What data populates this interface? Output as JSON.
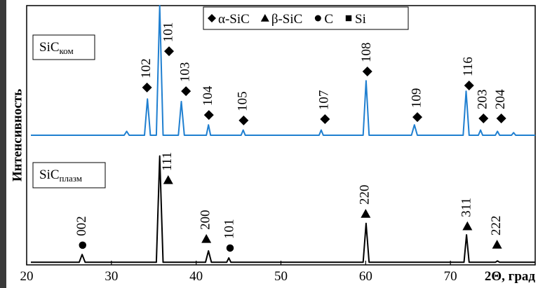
{
  "chart_data": {
    "type": "line",
    "xlabel": "2Θ, град",
    "ylabel": "Интенсивность",
    "xlim": [
      20,
      80
    ],
    "ylim": [
      0,
      100
    ],
    "xticks": [
      20,
      30,
      40,
      50,
      60,
      70
    ],
    "legend": [
      {
        "label": "α-SiC",
        "marker": "diamond"
      },
      {
        "label": "β-SiC",
        "marker": "triangle"
      },
      {
        "label": "C",
        "marker": "circle"
      },
      {
        "label": "Si",
        "marker": "square"
      }
    ],
    "panel_labels": [
      {
        "main": "SiC",
        "sub": "ком"
      },
      {
        "main": "SiC",
        "sub": "плазм"
      }
    ],
    "series": [
      {
        "color": "#1f7fd0",
        "x": [
          20.5,
          31.5,
          31.8,
          32.1,
          33.9,
          34.25,
          34.6,
          35.3,
          35.7,
          36.1,
          37.9,
          38.25,
          38.6,
          41.2,
          41.45,
          41.7,
          45.3,
          45.55,
          45.8,
          54.5,
          54.75,
          55.0,
          59.7,
          60.05,
          60.4,
          65.4,
          65.75,
          66.1,
          71.5,
          71.85,
          72.2,
          73.3,
          73.55,
          73.8,
          75.3,
          75.55,
          75.8,
          77.2,
          77.45,
          77.7,
          80
        ],
        "values": [
          50,
          50,
          51.5,
          50,
          50,
          64,
          50,
          50,
          100,
          50,
          50,
          63,
          50,
          50,
          54,
          50,
          50,
          52,
          50,
          50,
          52,
          50,
          50,
          71,
          50,
          50,
          54,
          50,
          50,
          67,
          50,
          50,
          52,
          50,
          50,
          51.5,
          50,
          50,
          51,
          50,
          50
        ]
      },
      {
        "color": "#000000",
        "x": [
          20.5,
          26.2,
          26.55,
          26.9,
          35.3,
          35.7,
          36.1,
          41.1,
          41.45,
          41.8,
          43.6,
          43.85,
          44.1,
          59.7,
          60.05,
          60.4,
          71.6,
          71.9,
          72.2,
          75.3,
          75.55,
          75.8,
          80
        ],
        "values": [
          1,
          1,
          4,
          1,
          1,
          42,
          1,
          1,
          5.4,
          1,
          1,
          2.7,
          1,
          1,
          16,
          1,
          1,
          11.6,
          1,
          1,
          1.5,
          1,
          1
        ]
      }
    ],
    "annotations": [
      {
        "text": "102",
        "x": 34.2,
        "y": 68.4,
        "marker": "diamond"
      },
      {
        "text": "101",
        "x": 36.8,
        "y": 82.4,
        "marker": "diamond"
      },
      {
        "text": "103",
        "x": 38.8,
        "y": 67,
        "marker": "diamond"
      },
      {
        "text": "104",
        "x": 41.5,
        "y": 57.8,
        "marker": "diamond"
      },
      {
        "text": "105",
        "x": 45.6,
        "y": 55.7,
        "marker": "diamond"
      },
      {
        "text": "107",
        "x": 55.2,
        "y": 56.2,
        "marker": "diamond"
      },
      {
        "text": "108",
        "x": 60.2,
        "y": 74.6,
        "marker": "diamond"
      },
      {
        "text": "109",
        "x": 66.1,
        "y": 57,
        "marker": "diamond"
      },
      {
        "text": "116",
        "x": 72.2,
        "y": 69.2,
        "marker": "diamond"
      },
      {
        "text": "203",
        "x": 73.9,
        "y": 56.5,
        "marker": "diamond"
      },
      {
        "text": "204",
        "x": 76,
        "y": 56.5,
        "marker": "diamond"
      },
      {
        "text": "002",
        "x": 26.6,
        "y": 7.6,
        "marker": "circle"
      },
      {
        "text": "111",
        "x": 36.7,
        "y": 32.7,
        "marker": "triangle"
      },
      {
        "text": "200",
        "x": 41.2,
        "y": 10,
        "marker": "triangle"
      },
      {
        "text": "101",
        "x": 44.0,
        "y": 6.5,
        "marker": "circle"
      },
      {
        "text": "220",
        "x": 60.0,
        "y": 19.7,
        "marker": "triangle"
      },
      {
        "text": "311",
        "x": 72.0,
        "y": 14.9,
        "marker": "triangle"
      },
      {
        "text": "222",
        "x": 75.5,
        "y": 7.8,
        "marker": "triangle"
      }
    ]
  }
}
